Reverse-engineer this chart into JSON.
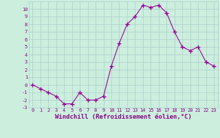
{
  "x": [
    0,
    1,
    2,
    3,
    4,
    5,
    6,
    7,
    8,
    9,
    10,
    11,
    12,
    13,
    14,
    15,
    16,
    17,
    18,
    19,
    20,
    21,
    22,
    23
  ],
  "y": [
    0,
    -0.5,
    -1,
    -1.5,
    -2.5,
    -2.5,
    -1,
    -2,
    -2,
    -1.5,
    2.5,
    5.5,
    8,
    9,
    10.5,
    10.2,
    10.5,
    9.5,
    7,
    5,
    4.5,
    5,
    3,
    2.5
  ],
  "line_color": "#990099",
  "marker": "+",
  "marker_size": 4,
  "bg_color": "#cceedd",
  "grid_color": "#aacccc",
  "xlabel": "Windchill (Refroidissement éolien,°C)",
  "xlim": [
    -0.5,
    23.5
  ],
  "ylim": [
    -3,
    11
  ],
  "xticks": [
    0,
    1,
    2,
    3,
    4,
    5,
    6,
    7,
    8,
    9,
    10,
    11,
    12,
    13,
    14,
    15,
    16,
    17,
    18,
    19,
    20,
    21,
    22,
    23
  ],
  "yticks": [
    -3,
    -2,
    -1,
    0,
    1,
    2,
    3,
    4,
    5,
    6,
    7,
    8,
    9,
    10
  ],
  "tick_color": "#880088",
  "label_color": "#880088",
  "tick_fontsize": 5.0,
  "xlabel_fontsize": 6.5
}
